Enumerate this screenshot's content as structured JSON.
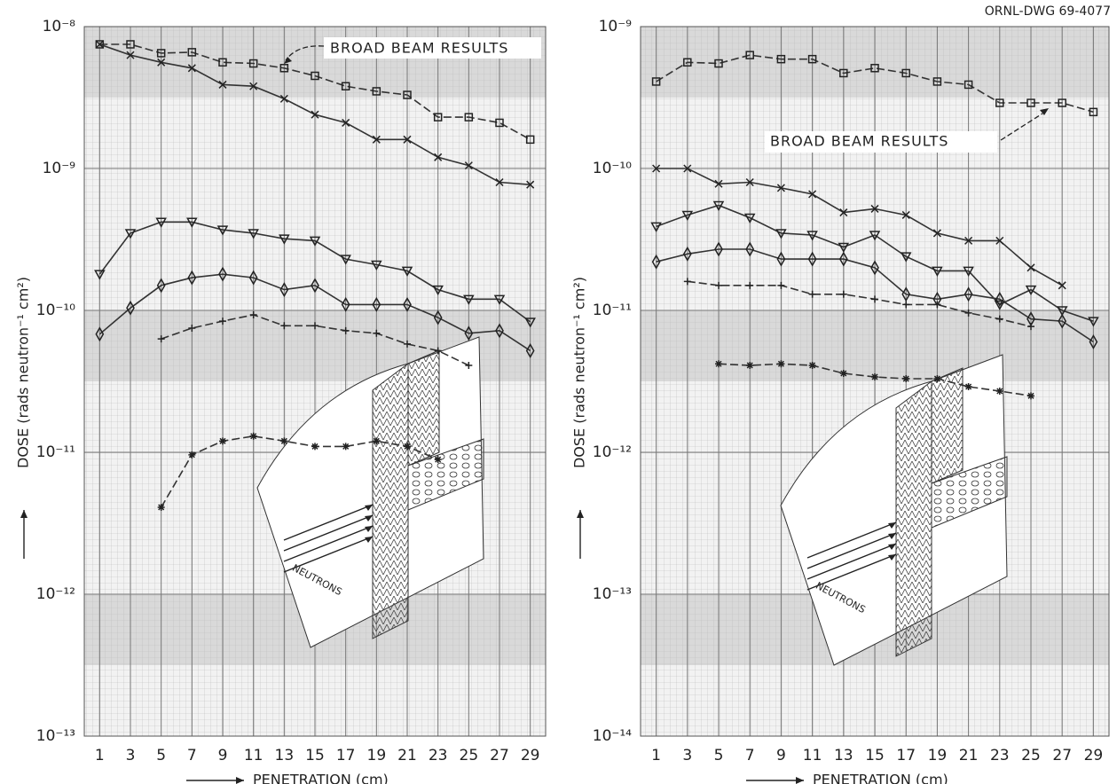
{
  "chart_data": [
    {
      "type": "line",
      "xlabel": "PENETRATION (cm)",
      "ylabel": "DOSE (rads neutron⁻¹ cm²)",
      "annotation": "BROAD BEAM RESULTS",
      "inset_label": "NEUTRONS",
      "log_y": true,
      "grid": true,
      "x": [
        1,
        3,
        5,
        7,
        9,
        11,
        13,
        15,
        17,
        19,
        21,
        23,
        25,
        27,
        29
      ],
      "xlim": [
        0,
        30
      ],
      "xticks": [
        1,
        3,
        5,
        7,
        9,
        11,
        13,
        15,
        17,
        19,
        21,
        23,
        25,
        27,
        29
      ],
      "ylim": [
        1e-13,
        1e-08
      ],
      "yticks": [
        {
          "value": 1e-13,
          "label": "10⁻¹³"
        },
        {
          "value": 1e-12,
          "label": "10⁻¹²"
        },
        {
          "value": 1e-11,
          "label": "10⁻¹¹"
        },
        {
          "value": 1e-10,
          "label": "10⁻¹⁰"
        },
        {
          "value": 1e-09,
          "label": "10⁻⁹"
        },
        {
          "value": 1e-08,
          "label": "10⁻⁸"
        }
      ],
      "series": [
        {
          "marker": "square",
          "dashed": true,
          "color": "#222",
          "values": [
            7.5e-09,
            7.5e-09,
            6.5e-09,
            6.6e-09,
            5.6e-09,
            5.5e-09,
            5.1e-09,
            4.5e-09,
            3.8e-09,
            3.5e-09,
            3.3e-09,
            2.3e-09,
            2.3e-09,
            2.1e-09,
            1.6e-09
          ]
        },
        {
          "marker": "x",
          "dashed": false,
          "color": "#222",
          "values": [
            7.5e-09,
            6.3e-09,
            5.6e-09,
            5.1e-09,
            3.9e-09,
            3.8e-09,
            3.1e-09,
            2.4e-09,
            2.1e-09,
            1.6e-09,
            1.6e-09,
            1.2e-09,
            1.05e-09,
            8e-10,
            7.7e-10
          ]
        },
        {
          "marker": "triangle",
          "dashed": false,
          "color": "#222",
          "values": [
            1.8e-10,
            3.5e-10,
            4.2e-10,
            4.2e-10,
            3.7e-10,
            3.5e-10,
            3.2e-10,
            3.1e-10,
            2.3e-10,
            2.1e-10,
            1.9e-10,
            1.4e-10,
            1.2e-10,
            1.2e-10,
            8.3e-11
          ]
        },
        {
          "marker": "diamond",
          "dashed": false,
          "color": "#222",
          "values": [
            6.8e-11,
            1.04e-10,
            1.5e-10,
            1.7e-10,
            1.8e-10,
            1.7e-10,
            1.4e-10,
            1.5e-10,
            1.1e-10,
            1.1e-10,
            1.1e-10,
            8.9e-11,
            6.9e-11,
            7.2e-11,
            5.2e-11
          ]
        },
        {
          "marker": "plus",
          "dashed": true,
          "color": "#222",
          "values": [
            null,
            null,
            6.3e-11,
            7.5e-11,
            8.4e-11,
            9.3e-11,
            7.8e-11,
            7.8e-11,
            7.2e-11,
            6.9e-11,
            5.8e-11,
            5.2e-11,
            4.1e-11,
            null,
            null
          ]
        },
        {
          "marker": "asterisk",
          "dashed": true,
          "color": "#222",
          "values": [
            null,
            null,
            4.1e-12,
            9.6e-12,
            1.2e-11,
            1.3e-11,
            1.2e-11,
            1.1e-11,
            1.1e-11,
            1.2e-11,
            1.1e-11,
            8.9e-12,
            null,
            null,
            null
          ]
        }
      ]
    },
    {
      "type": "line",
      "xlabel": "PENETRATION (cm)",
      "ylabel": "DOSE (rads neutron⁻¹ cm²)",
      "annotation": "BROAD BEAM RESULTS",
      "inset_label": "NEUTRONS",
      "drawing_number": "ORNL-DWG 69-4077",
      "log_y": true,
      "grid": true,
      "x": [
        1,
        3,
        5,
        7,
        9,
        11,
        13,
        15,
        17,
        19,
        21,
        23,
        25,
        27,
        29
      ],
      "xlim": [
        0,
        30
      ],
      "xticks": [
        1,
        3,
        5,
        7,
        9,
        11,
        13,
        15,
        17,
        19,
        21,
        23,
        25,
        27,
        29
      ],
      "ylim": [
        1e-14,
        1e-09
      ],
      "yticks": [
        {
          "value": 1e-14,
          "label": "10⁻¹⁴"
        },
        {
          "value": 1e-13,
          "label": "10⁻¹³"
        },
        {
          "value": 1e-12,
          "label": "10⁻¹²"
        },
        {
          "value": 1e-11,
          "label": "10⁻¹¹"
        },
        {
          "value": 1e-10,
          "label": "10⁻¹⁰"
        },
        {
          "value": 1e-09,
          "label": "10⁻⁹"
        }
      ],
      "series": [
        {
          "marker": "square",
          "dashed": true,
          "color": "#222",
          "values": [
            4.1e-10,
            5.6e-10,
            5.5e-10,
            6.3e-10,
            5.9e-10,
            5.9e-10,
            4.7e-10,
            5.1e-10,
            4.7e-10,
            4.1e-10,
            3.9e-10,
            2.9e-10,
            2.9e-10,
            2.9e-10,
            2.5e-10
          ]
        },
        {
          "marker": "x",
          "dashed": false,
          "color": "#222",
          "values": [
            1e-10,
            1e-10,
            7.8e-11,
            8e-11,
            7.3e-11,
            6.6e-11,
            4.9e-11,
            5.2e-11,
            4.7e-11,
            3.5e-11,
            3.1e-11,
            3.1e-11,
            2e-11,
            1.5e-11,
            null
          ]
        },
        {
          "marker": "triangle",
          "dashed": false,
          "color": "#222",
          "values": [
            3.9e-11,
            4.7e-11,
            5.5e-11,
            4.5e-11,
            3.5e-11,
            3.4e-11,
            2.8e-11,
            3.4e-11,
            2.4e-11,
            1.9e-11,
            1.9e-11,
            1.1e-11,
            1.4e-11,
            1e-11,
            8.4e-12
          ]
        },
        {
          "marker": "diamond",
          "dashed": false,
          "color": "#222",
          "values": [
            2.2e-11,
            2.5e-11,
            2.7e-11,
            2.7e-11,
            2.3e-11,
            2.3e-11,
            2.3e-11,
            2e-11,
            1.3e-11,
            1.2e-11,
            1.3e-11,
            1.2e-11,
            8.7e-12,
            8.4e-12,
            6e-12
          ]
        },
        {
          "marker": "plus",
          "dashed": true,
          "color": "#222",
          "values": [
            null,
            1.6e-11,
            1.5e-11,
            1.5e-11,
            1.5e-11,
            1.3e-11,
            1.3e-11,
            1.2e-11,
            1.1e-11,
            1.1e-11,
            9.6e-12,
            8.7e-12,
            7.7e-12,
            null,
            null
          ]
        },
        {
          "marker": "asterisk",
          "dashed": true,
          "color": "#222",
          "values": [
            null,
            null,
            4.2e-12,
            4.1e-12,
            4.2e-12,
            4.1e-12,
            3.6e-12,
            3.4e-12,
            3.3e-12,
            3.3e-12,
            2.9e-12,
            2.7e-12,
            2.5e-12,
            null,
            null
          ]
        }
      ]
    }
  ]
}
